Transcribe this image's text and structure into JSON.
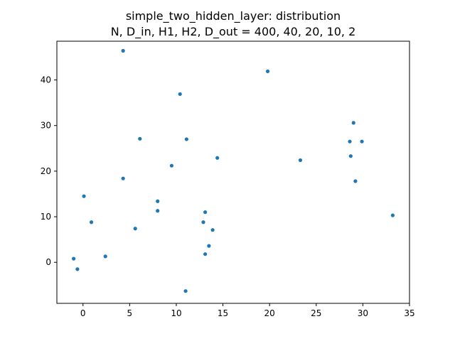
{
  "chart_data": {
    "type": "scatter",
    "title": "simple_two_hidden_layer: distribution",
    "subtitle": "N, D_in, H1, H2, D_out = 400, 40, 20, 10, 2",
    "xlabel": "",
    "ylabel": "",
    "xlim": [
      -2.8,
      35.0
    ],
    "ylim": [
      -9.0,
      48.5
    ],
    "xticks": [
      0,
      5,
      10,
      15,
      20,
      25,
      30,
      35
    ],
    "yticks": [
      0,
      10,
      20,
      30,
      40
    ],
    "grid": false,
    "legend": "none",
    "point_color": "#1f77b4",
    "points": [
      {
        "x": 4.3,
        "y": 46.4
      },
      {
        "x": 19.8,
        "y": 41.9
      },
      {
        "x": 10.4,
        "y": 36.9
      },
      {
        "x": 29.0,
        "y": 30.6
      },
      {
        "x": 6.1,
        "y": 27.1
      },
      {
        "x": 11.1,
        "y": 27.0
      },
      {
        "x": 28.6,
        "y": 26.5
      },
      {
        "x": 29.9,
        "y": 26.5
      },
      {
        "x": 28.7,
        "y": 23.3
      },
      {
        "x": 14.4,
        "y": 22.9
      },
      {
        "x": 23.3,
        "y": 22.4
      },
      {
        "x": 9.5,
        "y": 21.2
      },
      {
        "x": 4.3,
        "y": 18.4
      },
      {
        "x": 29.2,
        "y": 17.8
      },
      {
        "x": 0.1,
        "y": 14.5
      },
      {
        "x": 8.0,
        "y": 13.4
      },
      {
        "x": 8.0,
        "y": 11.3
      },
      {
        "x": 13.1,
        "y": 11.0
      },
      {
        "x": 33.2,
        "y": 10.3
      },
      {
        "x": 0.9,
        "y": 8.8
      },
      {
        "x": 12.9,
        "y": 8.8
      },
      {
        "x": 5.6,
        "y": 7.4
      },
      {
        "x": 13.9,
        "y": 7.1
      },
      {
        "x": 13.5,
        "y": 3.6
      },
      {
        "x": 13.1,
        "y": 1.8
      },
      {
        "x": 2.4,
        "y": 1.3
      },
      {
        "x": -1.0,
        "y": 0.8
      },
      {
        "x": -0.6,
        "y": -1.5
      },
      {
        "x": 11.0,
        "y": -6.3
      }
    ]
  }
}
